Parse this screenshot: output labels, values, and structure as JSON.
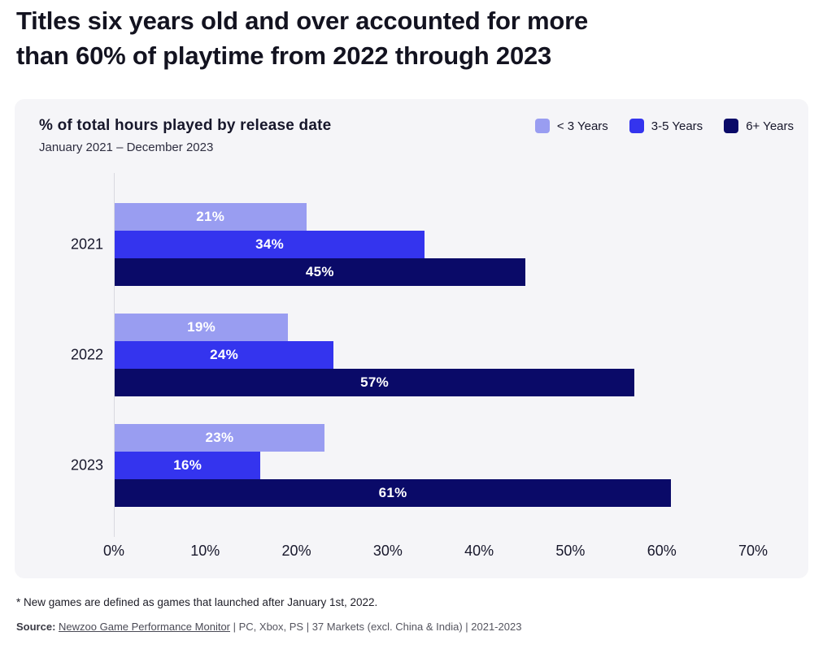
{
  "page_title": {
    "line1": "Titles six years old and over accounted for more",
    "line2": "than 60% of playtime from 2022 through 2023"
  },
  "card": {
    "title": "% of total hours played by release date",
    "subtitle": "January 2021 – December 2023"
  },
  "footnote": "* New games are defined as games that launched after January 1st, 2022.",
  "source": {
    "label": "Source:",
    "link": "Newzoo Game Performance Monitor",
    "rest": " | PC, Xbox, PS | 37 Markets (excl. China & India) | 2021-2023"
  },
  "colors": {
    "less_than_3_years": "#999DF1",
    "three_to_five_years": "#3434EE",
    "six_plus_years": "#0A0A68",
    "card_background": "#F5F5F8",
    "axis_line": "#D9D9E0",
    "title_text": "#131320",
    "bar_label_text": "#FFFFFF"
  },
  "chart_data": {
    "type": "bar",
    "orientation": "horizontal",
    "title": "% of total hours played by release date",
    "subtitle": "January 2021 – December 2023",
    "categories": [
      "2021",
      "2022",
      "2023"
    ],
    "series": [
      {
        "name": "< 3 Years",
        "color": "#999DF1",
        "values": [
          21,
          19,
          23
        ]
      },
      {
        "name": "3-5 Years",
        "color": "#3434EE",
        "values": [
          34,
          24,
          16
        ]
      },
      {
        "name": "6+ Years",
        "color": "#0A0A68",
        "values": [
          45,
          57,
          61
        ]
      }
    ],
    "xlim": [
      0,
      70
    ],
    "x_ticks": [
      "0%",
      "10%",
      "20%",
      "30%",
      "40%",
      "50%",
      "60%",
      "70%"
    ],
    "value_suffix": "%",
    "legend_position": "top-right",
    "grid": false,
    "value_labels": "inside-center"
  }
}
